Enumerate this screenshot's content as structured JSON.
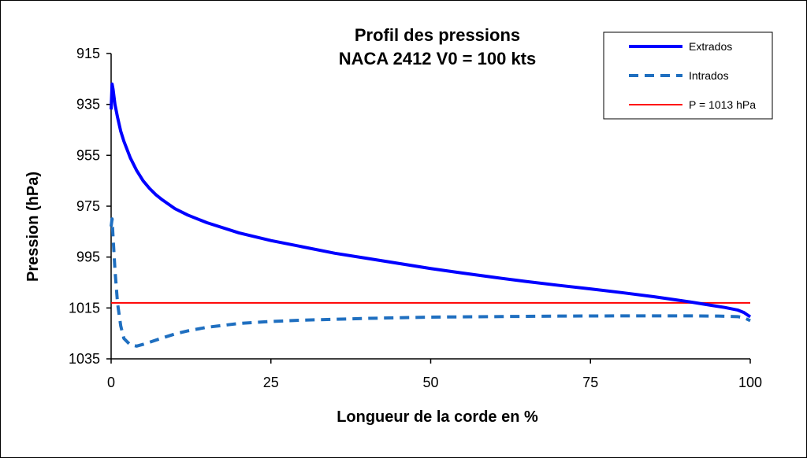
{
  "chart_data": {
    "type": "line",
    "title_line1": "Profil des pressions",
    "title_line2": "NACA 2412   V0 = 100 kts",
    "xlabel": "Longueur de la corde en %",
    "ylabel": "Pression (hPa)",
    "xlim": [
      0,
      100
    ],
    "ylim": [
      915,
      1035
    ],
    "y_inverted": true,
    "x_ticks": [
      "0",
      "25",
      "50",
      "75",
      "100"
    ],
    "y_ticks": [
      "915",
      "935",
      "955",
      "975",
      "995",
      "1015",
      "1035"
    ],
    "grid": false,
    "legend_position": "top-right",
    "colors": {
      "extrados": "#0000ff",
      "intrados": "#1f6fc0",
      "reference": "#ff0000"
    },
    "series": [
      {
        "name": "Extrados",
        "style": "solid",
        "x": [
          0,
          0.15,
          0.3,
          0.6,
          1,
          1.5,
          2,
          3,
          4,
          5,
          6,
          7,
          8,
          10,
          12,
          15,
          20,
          25,
          30,
          35,
          40,
          45,
          50,
          55,
          60,
          65,
          70,
          75,
          80,
          85,
          88,
          90,
          92,
          94,
          96,
          98,
          99,
          100
        ],
        "y": [
          937,
          927,
          929,
          935,
          940,
          945.5,
          949.5,
          956,
          961,
          965,
          968,
          970.5,
          972.5,
          976,
          978.5,
          981.5,
          985.5,
          988.5,
          991,
          993.5,
          995.5,
          997.5,
          999.5,
          1001.3,
          1003,
          1004.6,
          1006.1,
          1007.5,
          1009,
          1010.6,
          1011.7,
          1012.4,
          1013.2,
          1014,
          1014.8,
          1015.8,
          1016.8,
          1018.5
        ]
      },
      {
        "name": "Intrados",
        "style": "dashed",
        "x": [
          0,
          0.15,
          0.3,
          0.6,
          1,
          1.5,
          2,
          3,
          4,
          5,
          6,
          8,
          10,
          12,
          15,
          20,
          25,
          30,
          40,
          50,
          60,
          70,
          80,
          90,
          95,
          98,
          99,
          100
        ],
        "y": [
          983,
          980,
          987,
          1000,
          1013,
          1022,
          1027,
          1029.5,
          1030,
          1029.3,
          1028.5,
          1026.8,
          1025.2,
          1024,
          1022.6,
          1021.1,
          1020.3,
          1019.8,
          1019.1,
          1018.6,
          1018.4,
          1018.2,
          1018.1,
          1018.1,
          1018.2,
          1018.4,
          1018.8,
          1020
        ]
      },
      {
        "name": "P = 1013 hPa",
        "style": "solid-thin",
        "x": [
          0,
          100
        ],
        "y": [
          1013,
          1013
        ]
      }
    ]
  }
}
